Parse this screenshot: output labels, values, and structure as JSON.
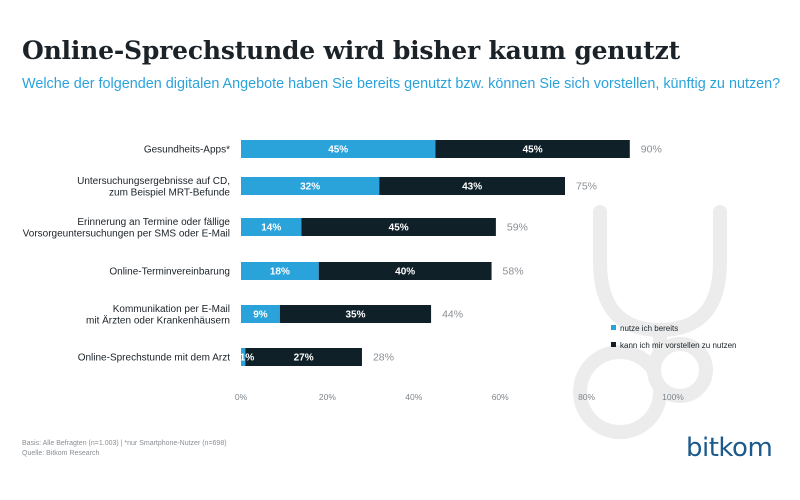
{
  "title": "Online-Sprechstunde wird bisher kaum genutzt",
  "subtitle": "Welche der folgenden digitalen Angebote haben Sie bereits genutzt bzw. können Sie sich vorstellen, künftig zu nutzen?",
  "colors": {
    "used": "#2aa3db",
    "imagine": "#0f2029",
    "total_label": "#8a8f94",
    "text": "#1b2228",
    "watermark": "#ececec"
  },
  "chart_data": {
    "type": "bar",
    "orientation": "horizontal",
    "stacked": true,
    "categories": [
      [
        "Gesundheits-Apps*"
      ],
      [
        "Untersuchungsergebnisse auf CD,",
        "zum Beispiel MRT-Befunde"
      ],
      [
        "Erinnerung an Termine oder fällige",
        "Vorsorgeuntersuchungen per SMS oder E-Mail"
      ],
      [
        "Online-Terminvereinbarung"
      ],
      [
        "Kommunikation per E-Mail",
        "mit Ärzten oder Krankenhäusern"
      ],
      [
        "Online-Sprechstunde mit dem Arzt"
      ]
    ],
    "series": [
      {
        "name": "nutze ich bereits",
        "values": [
          45,
          32,
          14,
          18,
          9,
          1
        ],
        "labels": [
          "45%",
          "32%",
          "14%",
          "18%",
          "9%",
          "1%"
        ]
      },
      {
        "name": "kann ich mir vorstellen zu nutzen",
        "values": [
          45,
          43,
          45,
          40,
          35,
          27
        ],
        "labels": [
          "45%",
          "43%",
          "45%",
          "40%",
          "35%",
          "27%"
        ]
      }
    ],
    "totals": [
      "90%",
      "75%",
      "59%",
      "58%",
      "44%",
      "28%"
    ],
    "xlim": [
      0,
      100
    ],
    "xticks": [
      "0%",
      "20%",
      "40%",
      "60%",
      "80%",
      "100%"
    ],
    "legend_position": "bottom-right"
  },
  "footer": {
    "basis": "Basis: Alle Befragten (n=1.003) | *nur Smartphone-Nutzer (n=698)",
    "source": "Quelle: Bitkom Research"
  },
  "brand": "bitkom"
}
